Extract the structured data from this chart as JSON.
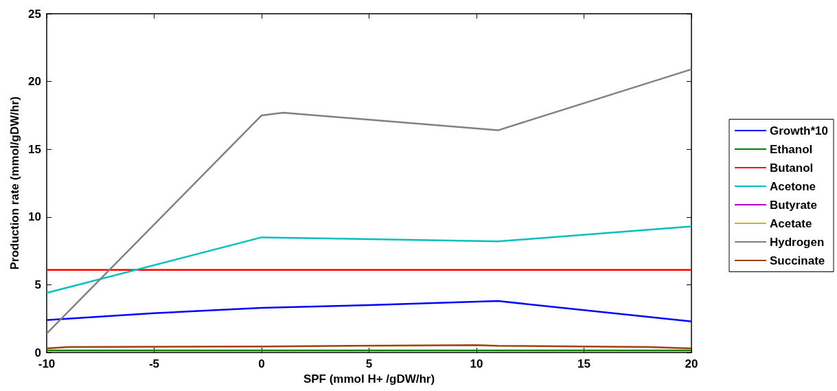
{
  "chart_data": {
    "type": "line",
    "xlabel": "SPF (mmol H+ /gDW/hr)",
    "ylabel": "Production rate (mmol/gDW/hr)",
    "xlim": [
      -10,
      20
    ],
    "xticks": [
      -10,
      -5,
      0,
      5,
      10,
      15,
      20
    ],
    "ylim": [
      0,
      25
    ],
    "yticks": [
      0,
      5,
      10,
      15,
      20,
      25
    ],
    "grid": false,
    "legend": "right",
    "marker": "none",
    "line_style": "solid",
    "series": [
      {
        "name": "Growth*10",
        "color": "#0000ff",
        "x": [
          -10,
          -5,
          0,
          5,
          11,
          20
        ],
        "values": [
          2.4,
          2.9,
          3.3,
          3.5,
          3.8,
          2.3
        ]
      },
      {
        "name": "Ethanol",
        "color": "#008000",
        "x": [
          -10,
          20
        ],
        "values": [
          0.15,
          0.15
        ]
      },
      {
        "name": "Butanol",
        "color": "#ff0000",
        "x": [
          -10,
          20
        ],
        "values": [
          6.1,
          6.1
        ]
      },
      {
        "name": "Acetone",
        "color": "#00bfbf",
        "x": [
          -10,
          0,
          11,
          20
        ],
        "values": [
          4.4,
          8.5,
          8.2,
          9.3
        ]
      },
      {
        "name": "Butyrate",
        "color": "#bf00bf"
      },
      {
        "name": "Acetate",
        "color": "#bfbf00"
      },
      {
        "name": "Hydrogen",
        "color": "#808080",
        "x": [
          -10,
          0,
          1,
          11,
          20
        ],
        "values": [
          1.4,
          17.5,
          17.7,
          16.4,
          20.9
        ]
      },
      {
        "name": "Succinate",
        "color": "#a0400a",
        "x": [
          -10,
          -9,
          0,
          10,
          11,
          18,
          20
        ],
        "values": [
          0.3,
          0.4,
          0.45,
          0.55,
          0.5,
          0.4,
          0.3
        ]
      }
    ]
  }
}
